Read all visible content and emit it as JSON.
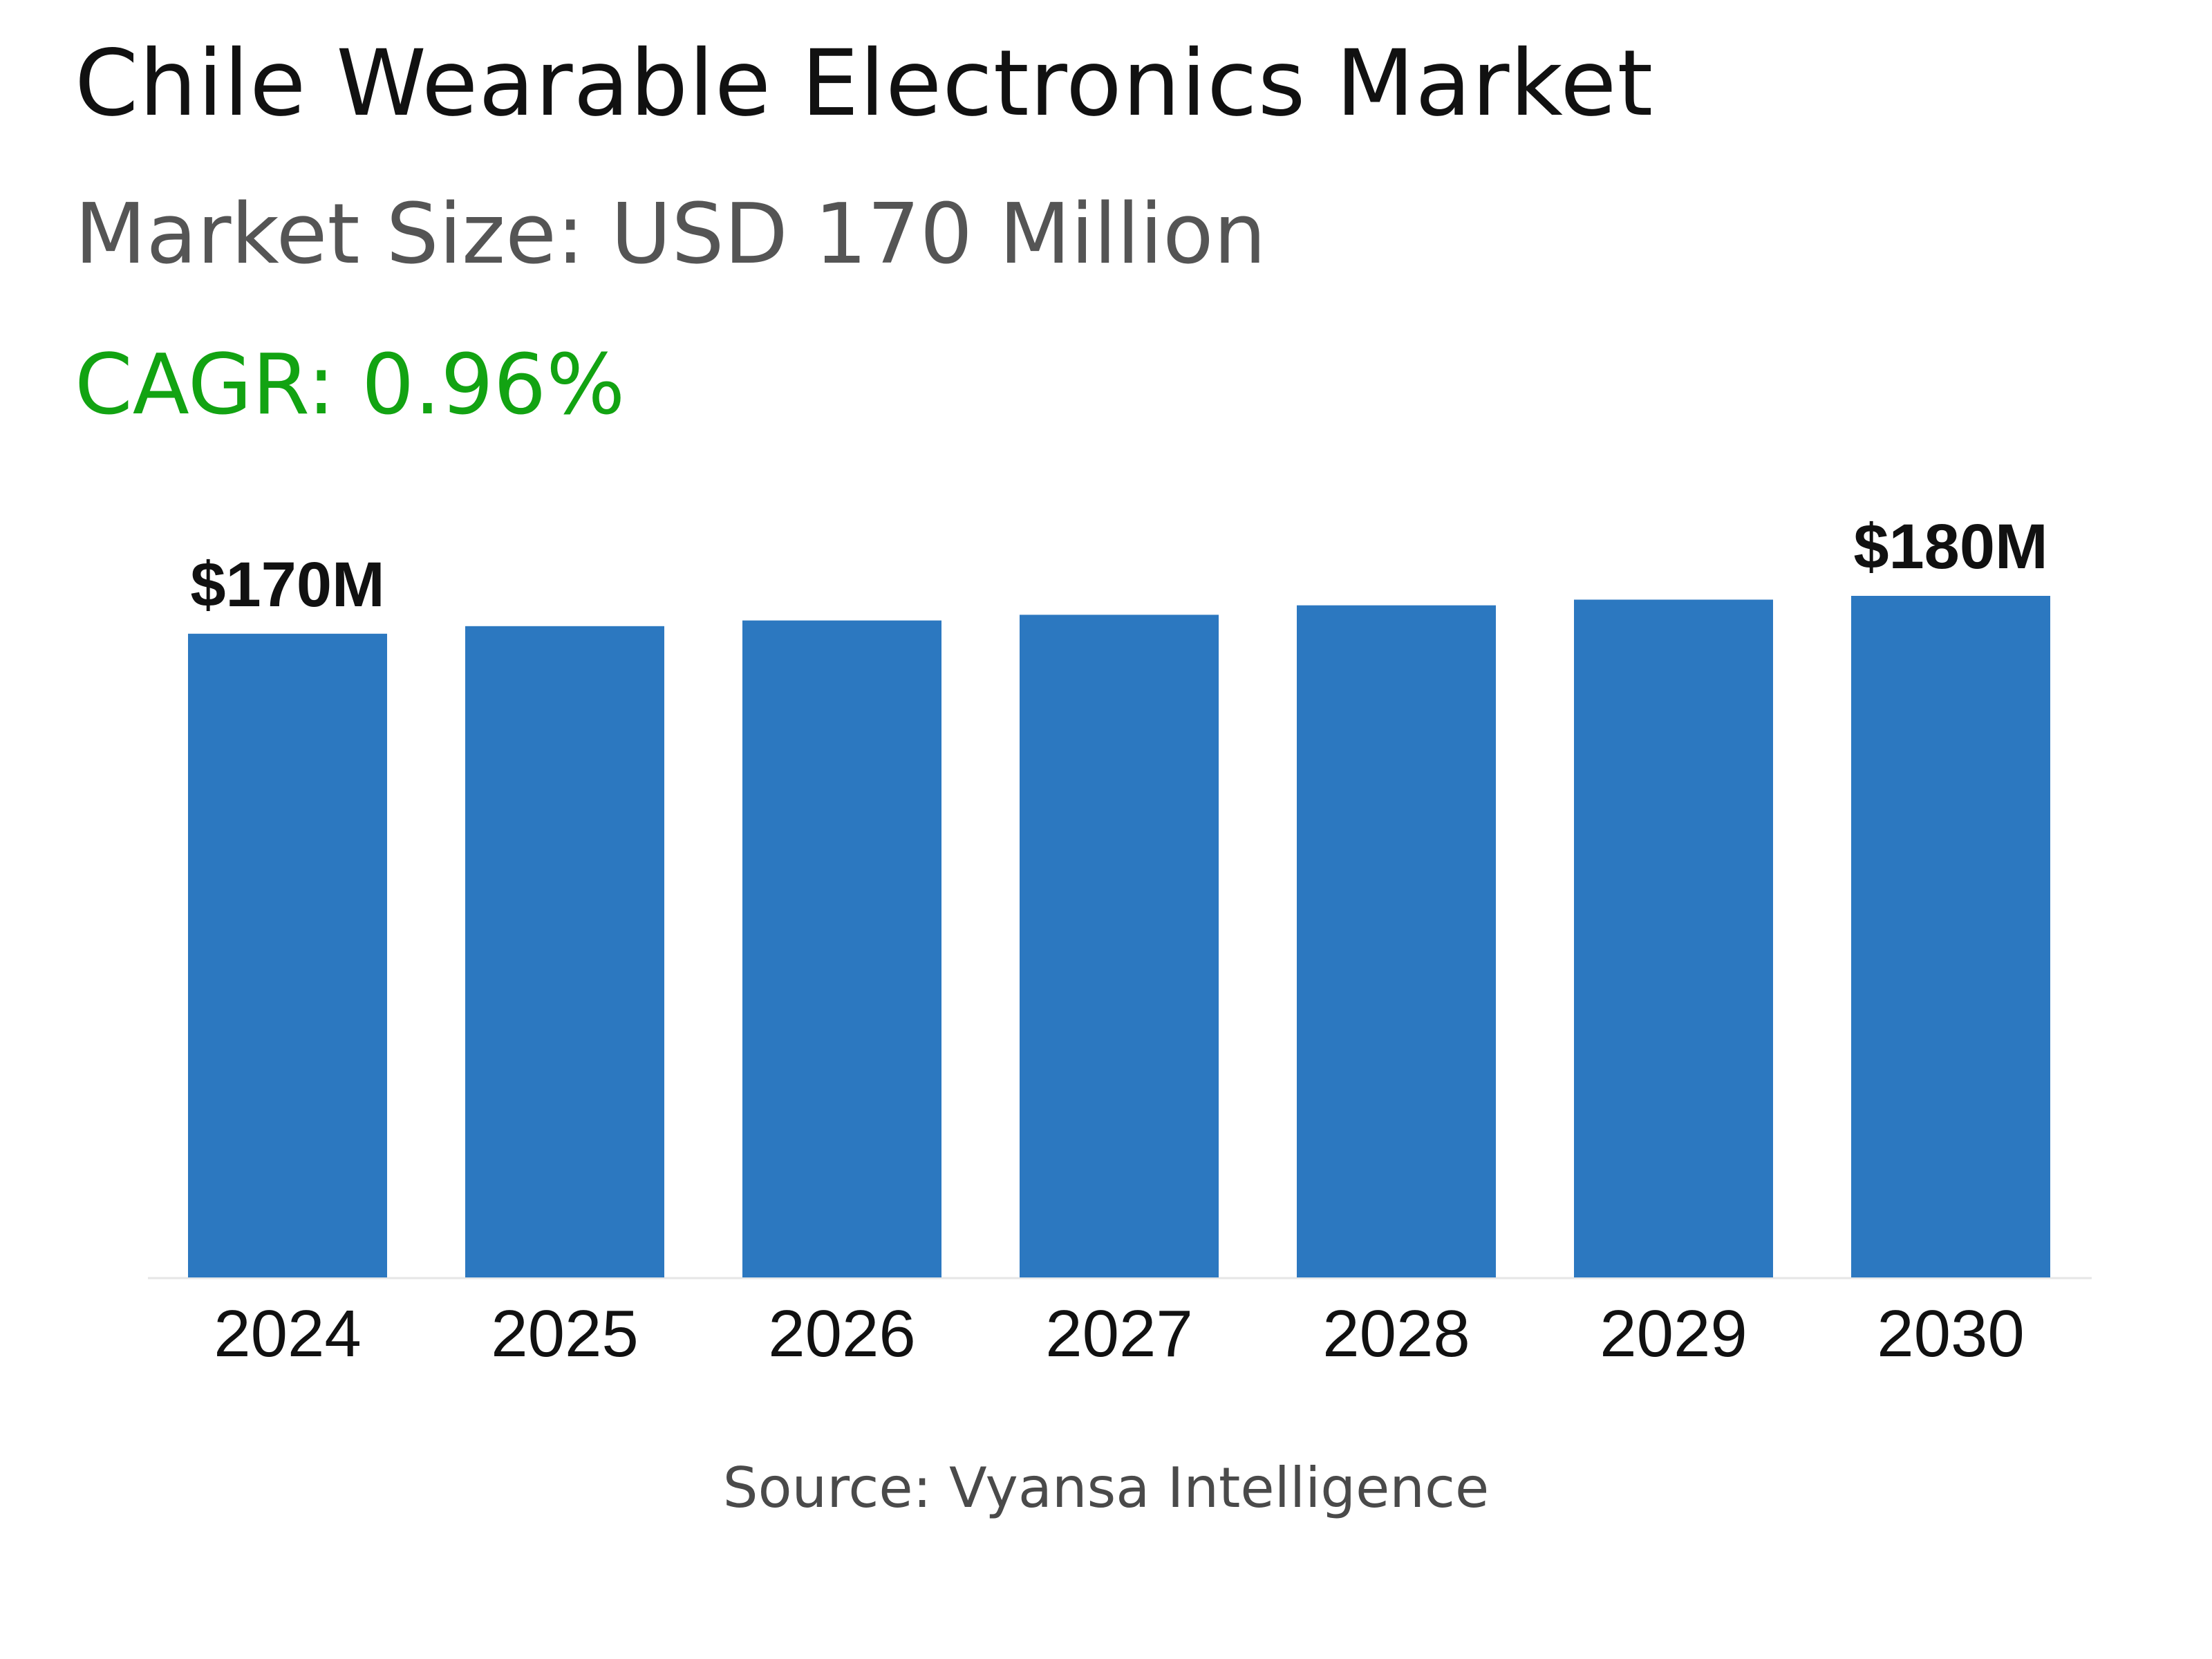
{
  "header": {
    "title": "Chile Wearable Electronics Market",
    "market_size": "Market Size: USD 170 Million",
    "cagr": "CAGR: 0.96%"
  },
  "footer": {
    "source": "Source: Vyansa Intelligence"
  },
  "colors": {
    "bar": "#2c78c0",
    "cagr": "#12a312",
    "axis": "#e6e6e6"
  },
  "chart_data": {
    "type": "bar",
    "categories": [
      "2024",
      "2025",
      "2026",
      "2027",
      "2028",
      "2029",
      "2030"
    ],
    "values": [
      170,
      172,
      173.5,
      175,
      177.5,
      179,
      180
    ],
    "data_labels": [
      "$170M",
      "",
      "",
      "",
      "",
      "",
      "$180M"
    ],
    "ylim": [
      0,
      180
    ],
    "grid": false,
    "legend": "none"
  }
}
